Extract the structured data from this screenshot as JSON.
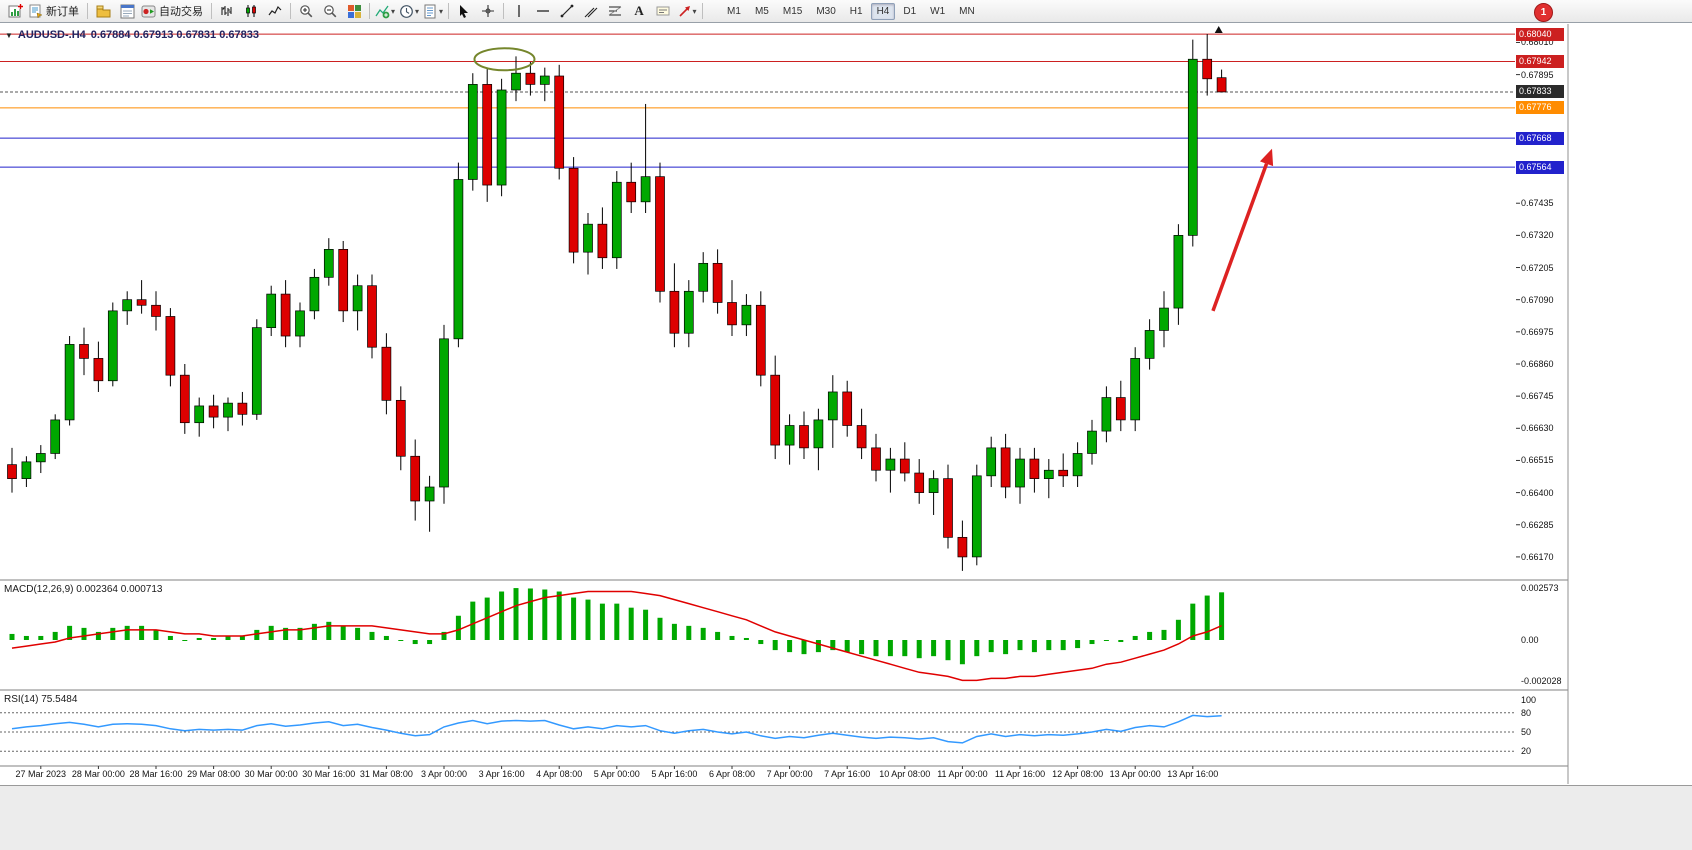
{
  "toolbar": {
    "new_order_label": "新订单",
    "auto_trading_label": "自动交易",
    "text_tool_label": "A",
    "timeframes": [
      "M1",
      "M5",
      "M15",
      "M30",
      "H1",
      "H4",
      "D1",
      "W1",
      "MN"
    ],
    "active_timeframe": "H4",
    "notification_badge": "1"
  },
  "chart": {
    "title_symbol": "AUDUSD-.H4",
    "title_ohlc": "0.67884 0.67913 0.67831 0.67833",
    "macd_label": "MACD(12,26,9) 0.002364 0.000713",
    "rsi_label": "RSI(14) 75.5484"
  },
  "chart_data": {
    "type": "candlestick+indicators",
    "symbol": "AUDUSD",
    "period": "H4",
    "current_bar": {
      "open": 0.67884,
      "high": 0.67913,
      "low": 0.67831,
      "close": 0.67833
    },
    "price_ylim": [
      0.66091,
      0.68076
    ],
    "price_ticks": [
      "0.68010",
      "0.67895",
      "0.67550",
      "0.67435",
      "0.67320",
      "0.67205",
      "0.67090",
      "0.66975",
      "0.66860",
      "0.66745",
      "0.66630",
      "0.66515",
      "0.66400",
      "0.66285",
      "0.66170"
    ],
    "levels": [
      {
        "price": "0.68040",
        "color": "#cc2020",
        "style": "solid",
        "name": "resistance-line-high"
      },
      {
        "price": "0.67942",
        "color": "#cc2020",
        "style": "solid",
        "name": "resistance-line"
      },
      {
        "price": "0.67833",
        "color": "#555555",
        "box_bg": "#2b2b2b",
        "style": "dash",
        "name": "bid-price-line"
      },
      {
        "price": "0.67776",
        "color": "#ff8c00",
        "style": "solid",
        "name": "orange-level-line"
      },
      {
        "price": "0.67668",
        "color": "#2222cc",
        "style": "solid",
        "name": "support-line-1"
      },
      {
        "price": "0.67564",
        "color": "#2222cc",
        "style": "solid",
        "name": "support-line-2"
      }
    ],
    "time_labels": [
      "27 Mar 2023",
      "28 Mar 00:00",
      "28 Mar 16:00",
      "29 Mar 08:00",
      "30 Mar 00:00",
      "30 Mar 16:00",
      "31 Mar 08:00",
      "3 Apr 00:00",
      "3 Apr 16:00",
      "4 Apr 08:00",
      "5 Apr 00:00",
      "5 Apr 16:00",
      "6 Apr 08:00",
      "7 Apr 00:00",
      "7 Apr 16:00",
      "10 Apr 08:00",
      "11 Apr 00:00",
      "11 Apr 16:00",
      "12 Apr 08:00",
      "13 Apr 00:00",
      "13 Apr 16:00"
    ],
    "candles": [
      [
        0.665,
        0.6656,
        0.664,
        0.6645
      ],
      [
        0.6645,
        0.6653,
        0.6642,
        0.6651
      ],
      [
        0.6651,
        0.6657,
        0.6647,
        0.6654
      ],
      [
        0.6654,
        0.6668,
        0.6652,
        0.6666
      ],
      [
        0.6666,
        0.6696,
        0.6664,
        0.6693
      ],
      [
        0.6693,
        0.6699,
        0.6682,
        0.6688
      ],
      [
        0.6688,
        0.6694,
        0.6676,
        0.668
      ],
      [
        0.668,
        0.6708,
        0.6678,
        0.6705
      ],
      [
        0.6705,
        0.6712,
        0.67,
        0.6709
      ],
      [
        0.6709,
        0.6716,
        0.6704,
        0.6707
      ],
      [
        0.6707,
        0.6712,
        0.6698,
        0.6703
      ],
      [
        0.6703,
        0.6706,
        0.6678,
        0.6682
      ],
      [
        0.6682,
        0.6686,
        0.6661,
        0.6665
      ],
      [
        0.6665,
        0.6674,
        0.666,
        0.6671
      ],
      [
        0.6671,
        0.6675,
        0.6663,
        0.6667
      ],
      [
        0.6667,
        0.6674,
        0.6662,
        0.6672
      ],
      [
        0.6672,
        0.6676,
        0.6664,
        0.6668
      ],
      [
        0.6668,
        0.6702,
        0.6666,
        0.6699
      ],
      [
        0.6699,
        0.6714,
        0.6696,
        0.6711
      ],
      [
        0.6711,
        0.6716,
        0.6692,
        0.6696
      ],
      [
        0.6696,
        0.6708,
        0.6692,
        0.6705
      ],
      [
        0.6705,
        0.672,
        0.6702,
        0.6717
      ],
      [
        0.6717,
        0.6731,
        0.6714,
        0.6727
      ],
      [
        0.6727,
        0.673,
        0.6701,
        0.6705
      ],
      [
        0.6705,
        0.6718,
        0.6698,
        0.6714
      ],
      [
        0.6714,
        0.6718,
        0.6688,
        0.6692
      ],
      [
        0.6692,
        0.6697,
        0.6668,
        0.6673
      ],
      [
        0.6673,
        0.6678,
        0.6648,
        0.6653
      ],
      [
        0.6653,
        0.6659,
        0.663,
        0.6637
      ],
      [
        0.6637,
        0.6646,
        0.6626,
        0.6642
      ],
      [
        0.6642,
        0.67,
        0.6636,
        0.6695
      ],
      [
        0.6695,
        0.6758,
        0.6692,
        0.6752
      ],
      [
        0.6752,
        0.679,
        0.6748,
        0.6786
      ],
      [
        0.6786,
        0.6792,
        0.6744,
        0.675
      ],
      [
        0.675,
        0.6788,
        0.6746,
        0.6784
      ],
      [
        0.6784,
        0.6796,
        0.678,
        0.679
      ],
      [
        0.679,
        0.6794,
        0.6782,
        0.6786
      ],
      [
        0.6786,
        0.6792,
        0.678,
        0.6789
      ],
      [
        0.6789,
        0.6793,
        0.6752,
        0.6756
      ],
      [
        0.6756,
        0.676,
        0.6722,
        0.6726
      ],
      [
        0.6726,
        0.674,
        0.6718,
        0.6736
      ],
      [
        0.6736,
        0.6742,
        0.672,
        0.6724
      ],
      [
        0.6724,
        0.6755,
        0.672,
        0.6751
      ],
      [
        0.6751,
        0.6758,
        0.674,
        0.6744
      ],
      [
        0.6744,
        0.6779,
        0.674,
        0.6753
      ],
      [
        0.6753,
        0.6758,
        0.6708,
        0.6712
      ],
      [
        0.6712,
        0.6722,
        0.6692,
        0.6697
      ],
      [
        0.6697,
        0.6716,
        0.6692,
        0.6712
      ],
      [
        0.6712,
        0.6726,
        0.6708,
        0.6722
      ],
      [
        0.6722,
        0.6727,
        0.6704,
        0.6708
      ],
      [
        0.6708,
        0.6716,
        0.6696,
        0.67
      ],
      [
        0.67,
        0.6711,
        0.6696,
        0.6707
      ],
      [
        0.6707,
        0.6712,
        0.6678,
        0.6682
      ],
      [
        0.6682,
        0.6689,
        0.6652,
        0.6657
      ],
      [
        0.6657,
        0.6668,
        0.665,
        0.6664
      ],
      [
        0.6664,
        0.6669,
        0.6652,
        0.6656
      ],
      [
        0.6656,
        0.667,
        0.6648,
        0.6666
      ],
      [
        0.6666,
        0.6682,
        0.6656,
        0.6676
      ],
      [
        0.6676,
        0.668,
        0.666,
        0.6664
      ],
      [
        0.6664,
        0.667,
        0.6652,
        0.6656
      ],
      [
        0.6656,
        0.6661,
        0.6644,
        0.6648
      ],
      [
        0.6648,
        0.6656,
        0.664,
        0.6652
      ],
      [
        0.6652,
        0.6658,
        0.6644,
        0.6647
      ],
      [
        0.6647,
        0.6652,
        0.6636,
        0.664
      ],
      [
        0.664,
        0.6648,
        0.6632,
        0.6645
      ],
      [
        0.6645,
        0.665,
        0.662,
        0.6624
      ],
      [
        0.6624,
        0.663,
        0.6612,
        0.6617
      ],
      [
        0.6617,
        0.665,
        0.6614,
        0.6646
      ],
      [
        0.6646,
        0.666,
        0.6642,
        0.6656
      ],
      [
        0.6656,
        0.6661,
        0.6638,
        0.6642
      ],
      [
        0.6642,
        0.6656,
        0.6636,
        0.6652
      ],
      [
        0.6652,
        0.6656,
        0.664,
        0.6645
      ],
      [
        0.6645,
        0.6652,
        0.6638,
        0.6648
      ],
      [
        0.6648,
        0.6654,
        0.6642,
        0.6646
      ],
      [
        0.6646,
        0.6658,
        0.6642,
        0.6654
      ],
      [
        0.6654,
        0.6666,
        0.665,
        0.6662
      ],
      [
        0.6662,
        0.6678,
        0.6658,
        0.6674
      ],
      [
        0.6674,
        0.668,
        0.6662,
        0.6666
      ],
      [
        0.6666,
        0.6692,
        0.6662,
        0.6688
      ],
      [
        0.6688,
        0.6702,
        0.6684,
        0.6698
      ],
      [
        0.6698,
        0.6712,
        0.6692,
        0.6706
      ],
      [
        0.6706,
        0.6736,
        0.67,
        0.6732
      ],
      [
        0.6732,
        0.6802,
        0.6728,
        0.6795
      ],
      [
        0.6795,
        0.6804,
        0.6782,
        0.6788
      ],
      [
        0.67884,
        0.67913,
        0.67831,
        0.67833
      ]
    ],
    "macd": {
      "params": "12,26,9",
      "current": [
        0.002364,
        0.000713
      ],
      "scale_labels": [
        "0.002573",
        "0.00",
        "-0.002028"
      ],
      "ylim": [
        -0.002028,
        0.002573
      ],
      "histogram": [
        0.0003,
        0.0002,
        0.0002,
        0.0004,
        0.0007,
        0.0006,
        0.0004,
        0.0006,
        0.0007,
        0.0007,
        0.0005,
        0.0002,
        0.0,
        0.0001,
        0.0001,
        0.0002,
        0.0002,
        0.0005,
        0.0007,
        0.0006,
        0.0006,
        0.0008,
        0.0009,
        0.0007,
        0.0006,
        0.0004,
        0.0002,
        0.0,
        -0.0002,
        -0.0002,
        0.0004,
        0.0012,
        0.0019,
        0.0021,
        0.0024,
        0.00257,
        0.00255,
        0.0025,
        0.0024,
        0.0021,
        0.002,
        0.0018,
        0.0018,
        0.0016,
        0.0015,
        0.0011,
        0.0008,
        0.0007,
        0.0006,
        0.0004,
        0.0002,
        0.0001,
        -0.0002,
        -0.0005,
        -0.0006,
        -0.0007,
        -0.0006,
        -0.0005,
        -0.0006,
        -0.0007,
        -0.0008,
        -0.0008,
        -0.0008,
        -0.0009,
        -0.0008,
        -0.001,
        -0.0012,
        -0.0008,
        -0.0006,
        -0.0007,
        -0.0005,
        -0.0006,
        -0.0005,
        -0.0005,
        -0.0004,
        -0.0002,
        0.0,
        -0.0001,
        0.0002,
        0.0004,
        0.0005,
        0.001,
        0.0018,
        0.0022,
        0.00236
      ],
      "signal": [
        -0.0004,
        -0.0003,
        -0.0002,
        -0.0001,
        0.0001,
        0.0002,
        0.0003,
        0.0004,
        0.0005,
        0.0005,
        0.0005,
        0.0004,
        0.0003,
        0.0003,
        0.0002,
        0.0002,
        0.0002,
        0.0003,
        0.0004,
        0.0005,
        0.0005,
        0.0006,
        0.0007,
        0.0007,
        0.0007,
        0.0007,
        0.0006,
        0.0005,
        0.0004,
        0.0003,
        0.0003,
        0.0005,
        0.0008,
        0.0011,
        0.0014,
        0.0017,
        0.0019,
        0.0021,
        0.0022,
        0.0023,
        0.0024,
        0.0024,
        0.0024,
        0.0024,
        0.0023,
        0.0022,
        0.002,
        0.0018,
        0.0016,
        0.0014,
        0.0012,
        0.001,
        0.0007,
        0.0004,
        0.0002,
        0.0,
        -0.0002,
        -0.0004,
        -0.0006,
        -0.0008,
        -0.001,
        -0.0012,
        -0.0014,
        -0.0016,
        -0.0017,
        -0.0018,
        -0.002,
        -0.002,
        -0.0019,
        -0.0019,
        -0.0018,
        -0.0018,
        -0.0017,
        -0.0016,
        -0.0015,
        -0.0014,
        -0.0012,
        -0.0011,
        -0.0009,
        -0.0007,
        -0.0005,
        -0.0002,
        0.0002,
        0.0004,
        0.00071
      ]
    },
    "rsi": {
      "period": 14,
      "current": 75.5484,
      "scale_labels": [
        "100",
        "80",
        "50",
        "20"
      ],
      "levels": [
        80,
        50,
        20
      ],
      "ylim": [
        0,
        100
      ],
      "values": [
        55,
        58,
        60,
        63,
        65,
        62,
        58,
        62,
        63,
        62,
        60,
        55,
        52,
        54,
        53,
        54,
        53,
        60,
        63,
        59,
        61,
        64,
        66,
        60,
        62,
        57,
        53,
        48,
        44,
        46,
        58,
        64,
        68,
        63,
        67,
        68,
        67,
        68,
        61,
        55,
        58,
        55,
        60,
        58,
        60,
        52,
        48,
        52,
        54,
        50,
        47,
        50,
        44,
        40,
        43,
        41,
        45,
        48,
        45,
        42,
        40,
        42,
        41,
        39,
        41,
        35,
        33,
        43,
        47,
        43,
        46,
        44,
        46,
        45,
        47,
        50,
        54,
        51,
        57,
        60,
        58,
        66,
        76,
        74,
        75.5
      ]
    },
    "annotations": {
      "ellipse": {
        "bar": 34.2,
        "price": 0.6795,
        "color": "#75862c"
      },
      "arrow": {
        "from_bar": 83.4,
        "from_price": 0.6705,
        "to_bar": 87.5,
        "to_price": 0.6763,
        "color": "#dd2222"
      },
      "triangle_marker": {
        "bar": 83.8,
        "color": "#111111"
      }
    },
    "colors": {
      "bull": "#00a800",
      "bear": "#dd0000",
      "wick": "#000000",
      "macd_histogram": "#00a800",
      "macd_signal": "#e00000",
      "rsi_line": "#3399ff"
    }
  }
}
